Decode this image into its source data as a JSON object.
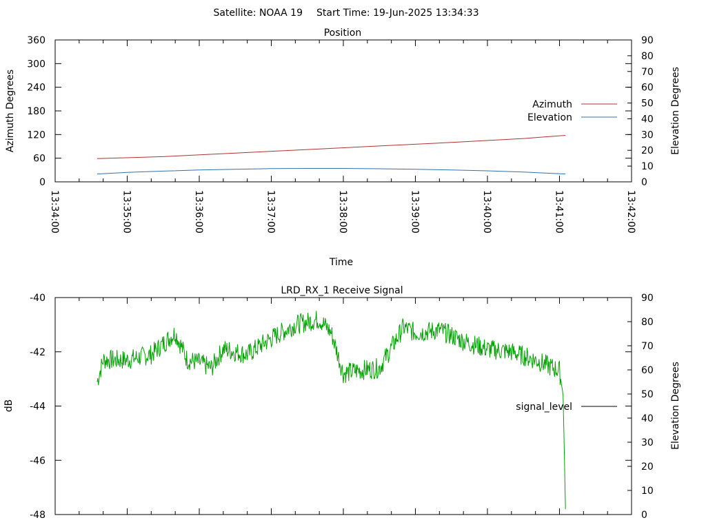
{
  "header": {
    "satellite_label": "Satellite: NOAA 19",
    "start_time_label": "Start Time: 19-Jun-2025 13:34:33"
  },
  "colors": {
    "azimuth": "#b03030",
    "elevation": "#3070a8",
    "signal": "#00a000",
    "axis": "#000000"
  },
  "chart_data": [
    {
      "type": "line",
      "title": "Position",
      "xlabel": "Time",
      "ylabel": "Azimuth Degrees",
      "y2label": "Elevation Degrees",
      "x_range": [
        "13:34:00",
        "13:42:00"
      ],
      "x_ticks": [
        "13:34:00",
        "13:35:00",
        "13:36:00",
        "13:37:00",
        "13:38:00",
        "13:39:00",
        "13:40:00",
        "13:41:00",
        "13:42:00"
      ],
      "ylim": [
        0,
        360
      ],
      "y_ticks": [
        "0",
        "60",
        "120",
        "180",
        "240",
        "300",
        "360"
      ],
      "y2lim": [
        0,
        90
      ],
      "y2_ticks": [
        "0",
        "10",
        "20",
        "30",
        "40",
        "50",
        "60",
        "70",
        "80",
        "90"
      ],
      "legend_position": "right",
      "series": [
        {
          "name": "Azimuth",
          "axis": "y",
          "x": [
            "13:34:35",
            "13:35:30",
            "13:36:30",
            "13:37:30",
            "13:38:30",
            "13:39:30",
            "13:40:30",
            "13:41:05"
          ],
          "values": [
            59,
            64,
            73,
            82,
            91,
            100,
            110,
            118
          ]
        },
        {
          "name": "Elevation",
          "axis": "y2",
          "x": [
            "13:34:35",
            "13:35:00",
            "13:35:30",
            "13:36:00",
            "13:36:30",
            "13:37:00",
            "13:37:30",
            "13:38:00",
            "13:38:30",
            "13:39:00",
            "13:39:30",
            "13:40:00",
            "13:40:30",
            "13:41:05"
          ],
          "values": [
            5,
            6,
            6.8,
            7.5,
            8,
            8.4,
            8.5,
            8.5,
            8.3,
            8,
            7.5,
            7,
            6.2,
            5
          ]
        }
      ]
    },
    {
      "type": "line",
      "title": "LRD_RX_1 Receive Signal",
      "xlabel": "",
      "ylabel": "dB",
      "y2label": "Elevation Degrees",
      "x_range": [
        "13:34:00",
        "13:42:00"
      ],
      "ylim": [
        -48,
        -40
      ],
      "y_ticks": [
        "-40",
        "-42",
        "-44",
        "-46",
        "-48"
      ],
      "y2lim": [
        0,
        90
      ],
      "y2_ticks": [
        "0",
        "10",
        "20",
        "30",
        "40",
        "50",
        "60",
        "70",
        "80",
        "90"
      ],
      "legend_position": "right",
      "series": [
        {
          "name": "signal_level",
          "axis": "y",
          "x": [
            "13:34:35",
            "13:34:40",
            "13:35:00",
            "13:35:20",
            "13:35:40",
            "13:35:50",
            "13:36:00",
            "13:36:10",
            "13:36:20",
            "13:36:40",
            "13:37:00",
            "13:37:20",
            "13:37:40",
            "13:37:50",
            "13:38:00",
            "13:38:10",
            "13:38:30",
            "13:38:50",
            "13:39:00",
            "13:39:20",
            "13:39:40",
            "13:40:00",
            "13:40:20",
            "13:40:40",
            "13:40:50",
            "13:41:00",
            "13:41:03",
            "13:41:05"
          ],
          "values": [
            -43.1,
            -42.3,
            -42.3,
            -42.1,
            -41.3,
            -42.3,
            -42.4,
            -42.6,
            -41.9,
            -42.1,
            -41.5,
            -41.0,
            -40.8,
            -41.3,
            -42.8,
            -42.7,
            -42.6,
            -41.1,
            -41.3,
            -41.2,
            -41.6,
            -41.9,
            -42.0,
            -42.3,
            -42.5,
            -42.7,
            -43.6,
            -47.8
          ]
        }
      ]
    }
  ]
}
